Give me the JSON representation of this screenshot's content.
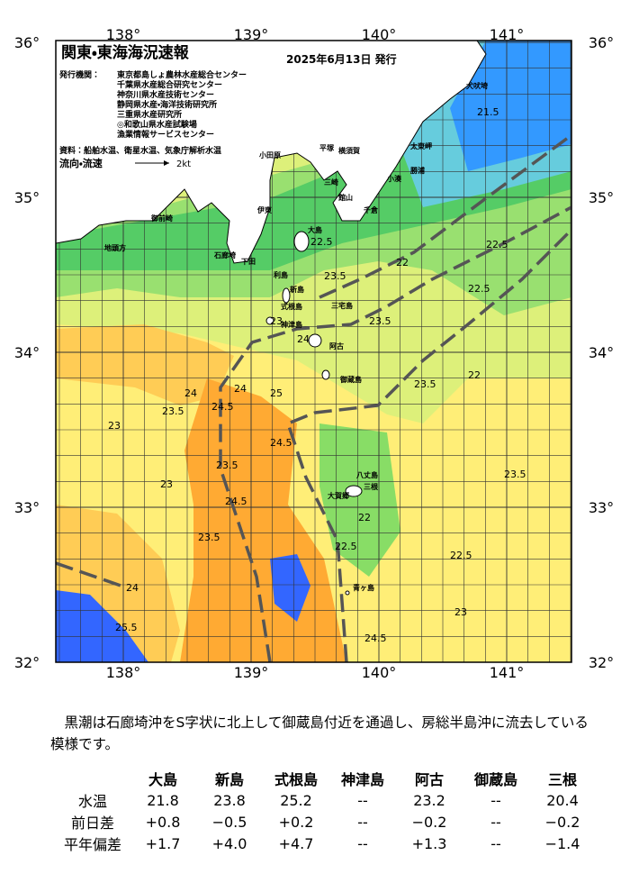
{
  "map": {
    "title": "関東・東海海況速報",
    "issue_date": "2025年6月13日 発行",
    "issuer_label": "発行機関：",
    "issuers": [
      "東京都島しょ農林水産総合センター",
      "千葉県水産総合研究センター",
      "神奈川県水産技術センター",
      "静岡県水産・海洋技術研究所",
      "三重県水産研究所",
      "◎和歌山県水産試験場",
      "漁業情報サービスセンター"
    ],
    "source": "資料：船舶水温、衛星水温、気象庁解析水温",
    "current_label": "流向・流速",
    "current_scale": "2kt",
    "lon_labels": [
      "138°",
      "139°",
      "140°",
      "141°"
    ],
    "lat_labels": [
      "36°",
      "35°",
      "34°",
      "33°",
      "32°"
    ],
    "place_names": [
      "犬吠埼",
      "太東岬",
      "勝浦",
      "小湊",
      "館山",
      "千倉",
      "平塚",
      "横須賀",
      "三崎",
      "小田原",
      "伊東",
      "下田",
      "石廊埼",
      "大島",
      "利島",
      "新島",
      "式根島",
      "神津島",
      "三宅島",
      "阿古",
      "御蔵島",
      "八丈島",
      "三根",
      "大賀郷",
      "青ヶ島",
      "御前崎",
      "地頭方"
    ],
    "contour_labels": [
      "21.5",
      "22",
      "22.5",
      "22.5",
      "22.5",
      "23",
      "23",
      "23",
      "23.5",
      "23.5",
      "23.5",
      "23.5",
      "23.5",
      "24",
      "24",
      "24",
      "24.5",
      "24.5",
      "24.5",
      "25",
      "25.5",
      "24",
      "22.5",
      "23.5",
      "22",
      "23",
      "22.5",
      "22",
      "23.5",
      "24.5"
    ]
  },
  "summary": "黒潮は石廊埼沖をS字状に北上して御蔵島付近を通過し、房総半島沖に流去している模様です。",
  "table": {
    "columns": [
      "大島",
      "新島",
      "式根島",
      "神津島",
      "阿古",
      "御蔵島",
      "三根"
    ],
    "rows": [
      {
        "label": "水温",
        "cells": [
          "21.8",
          "23.8",
          "25.2",
          "--",
          "23.2",
          "--",
          "20.4"
        ]
      },
      {
        "label": "前日差",
        "cells": [
          "+0.8",
          "−0.5",
          "+0.2",
          "--",
          "−0.2",
          "--",
          "−0.2"
        ]
      },
      {
        "label": "平年偏差",
        "cells": [
          "+1.7",
          "+4.0",
          "+4.7",
          "--",
          "+1.3",
          "--",
          "−1.4"
        ]
      }
    ]
  }
}
